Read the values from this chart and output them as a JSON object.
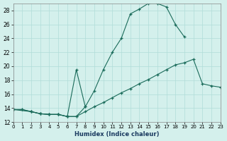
{
  "xlabel": "Humidex (Indice chaleur)",
  "bg_color": "#d4f0ec",
  "line_color": "#1a6b5a",
  "grid_color": "#b0ddd8",
  "xlim": [
    0,
    23
  ],
  "ylim": [
    12,
    29
  ],
  "xticks": [
    0,
    1,
    2,
    3,
    4,
    5,
    6,
    7,
    8,
    9,
    10,
    11,
    12,
    13,
    14,
    15,
    16,
    17,
    18,
    19,
    20,
    21,
    22,
    23
  ],
  "yticks": [
    12,
    14,
    16,
    18,
    20,
    22,
    24,
    26,
    28
  ],
  "curve1_x": [
    0,
    1,
    2,
    3,
    4,
    5,
    6,
    7,
    8,
    9,
    10,
    11,
    12,
    13,
    14,
    15,
    16,
    17,
    18,
    19
  ],
  "curve1_y": [
    13.8,
    13.8,
    13.5,
    13.2,
    13.1,
    13.1,
    12.8,
    12.8,
    14.2,
    16.5,
    19.5,
    22.0,
    24.0,
    27.5,
    28.2,
    29.0,
    29.0,
    28.5,
    26.0,
    24.2
  ],
  "curve2_x": [
    0,
    1,
    2,
    3,
    4,
    5,
    6,
    7,
    8,
    9,
    10,
    11,
    12,
    13,
    14,
    15,
    16,
    17,
    18,
    19,
    20,
    21,
    22,
    23
  ],
  "curve2_y": [
    13.8,
    13.8,
    13.5,
    13.2,
    13.1,
    13.1,
    12.8,
    12.8,
    13.5,
    14.2,
    14.8,
    15.5,
    16.2,
    16.8,
    17.5,
    18.1,
    18.8,
    19.5,
    20.2,
    20.5,
    21.0,
    17.5,
    17.2,
    17.0
  ],
  "curve3_x": [
    0,
    2,
    3,
    4,
    5,
    6,
    7,
    8
  ],
  "curve3_y": [
    13.8,
    13.5,
    13.2,
    13.1,
    13.1,
    12.8,
    19.5,
    14.2
  ]
}
